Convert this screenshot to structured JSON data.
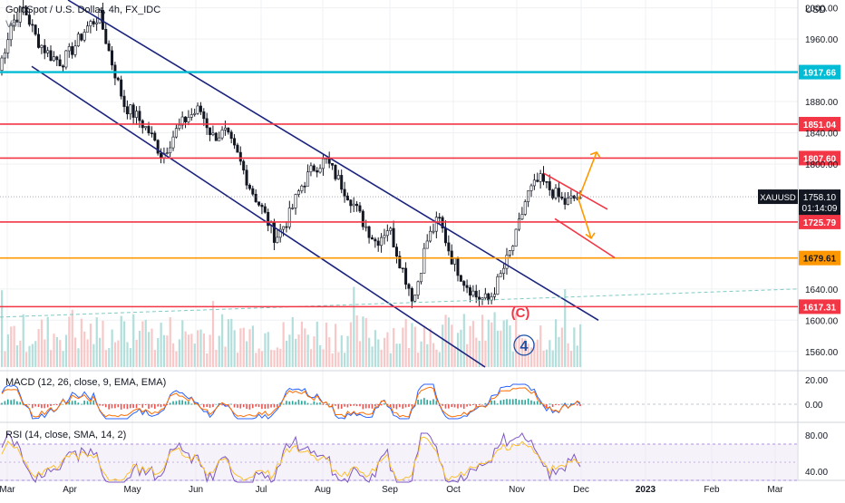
{
  "header": {
    "symbol_title": "GoldSpot / U.S. Dollar, 4h, FX_IDC",
    "vol_label": "Vol",
    "currency": "USD"
  },
  "colors": {
    "background": "#ffffff",
    "grid": "#eef0f3",
    "candle": "#131722",
    "channel": "#1a237e",
    "support_red": "#f23645",
    "orange": "#ff9800",
    "cyan": "#00bcd4",
    "volume_up": "#b2dfdb",
    "volume_down": "#f8c8c8",
    "macd": "#2962ff",
    "signal": "#ff6d00",
    "rsi": "#7e57c2",
    "rsi_ma": "#fbc02d",
    "wave_red": "#f23645",
    "wave_blue": "#1e4fa8"
  },
  "chart_data": {
    "type": "candlestick",
    "timeframe": "4h",
    "x_ticks": [
      "Mar",
      "Apr",
      "May",
      "Jun",
      "Jul",
      "Aug",
      "Sep",
      "Oct",
      "Nov",
      "Dec",
      "2023",
      "Feb",
      "Mar"
    ],
    "y_ticks": [
      2000,
      1960,
      1880,
      1840,
      1800,
      1640,
      1600,
      1560
    ],
    "ylim": [
      1540,
      2010
    ],
    "price_path": [
      [
        "Mar",
        1920
      ],
      [
        "Mar",
        1980
      ],
      [
        "Mar",
        2000
      ],
      [
        "Mar",
        1960
      ],
      [
        "Mar",
        1940
      ],
      [
        "Apr",
        1930
      ],
      [
        "Apr",
        1950
      ],
      [
        "Apr",
        1975
      ],
      [
        "Apr",
        1990
      ],
      [
        "May",
        1930
      ],
      [
        "May",
        1875
      ],
      [
        "May",
        1860
      ],
      [
        "May",
        1840
      ],
      [
        "May",
        1810
      ],
      [
        "Jun",
        1840
      ],
      [
        "Jun",
        1860
      ],
      [
        "Jun",
        1870
      ],
      [
        "Jun",
        1835
      ],
      [
        "Jun",
        1840
      ],
      [
        "Jul",
        1810
      ],
      [
        "Jul",
        1770
      ],
      [
        "Jul",
        1740
      ],
      [
        "Jul",
        1705
      ],
      [
        "Jul",
        1730
      ],
      [
        "Aug",
        1770
      ],
      [
        "Aug",
        1795
      ],
      [
        "Aug",
        1805
      ],
      [
        "Aug",
        1780
      ],
      [
        "Aug",
        1755
      ],
      [
        "Sep",
        1725
      ],
      [
        "Sep",
        1700
      ],
      [
        "Sep",
        1720
      ],
      [
        "Sep",
        1670
      ],
      [
        "Oct",
        1625
      ],
      [
        "Oct",
        1700
      ],
      [
        "Oct",
        1730
      ],
      [
        "Oct",
        1680
      ],
      [
        "Oct",
        1650
      ],
      [
        "Nov",
        1630
      ],
      [
        "Nov",
        1625
      ],
      [
        "Nov",
        1660
      ],
      [
        "Nov",
        1700
      ],
      [
        "Nov",
        1760
      ],
      [
        "Nov",
        1780
      ],
      [
        "Nov",
        1765
      ],
      [
        "Nov",
        1750
      ],
      [
        "Dec",
        1758
      ]
    ],
    "levels": [
      {
        "name": "1917.66",
        "value": 1917.66,
        "color": "cyan"
      },
      {
        "name": "1851.04",
        "value": 1851.04,
        "color": "red"
      },
      {
        "name": "1807.60",
        "value": 1807.6,
        "color": "red"
      },
      {
        "name": "1725.79",
        "value": 1725.79,
        "color": "red"
      },
      {
        "name": "1679.61",
        "value": 1679.61,
        "color": "orange"
      },
      {
        "name": "1617.31",
        "value": 1617.31,
        "color": "red"
      }
    ],
    "last_price": {
      "symbol": "XAUUSD",
      "value": "1758.10",
      "countdown": "01:14:09"
    },
    "annotations": {
      "wave_c": "(C)",
      "wave_4": "4"
    },
    "macd": {
      "label": "MACD (12, 26, close, 9, EMA, EMA)",
      "y_ticks": [
        "20.00",
        "0.00"
      ]
    },
    "rsi": {
      "label": "RSI (14, close, SMA, 14, 2)",
      "y_ticks": [
        "80.00",
        "40.00"
      ]
    },
    "grid": true
  }
}
